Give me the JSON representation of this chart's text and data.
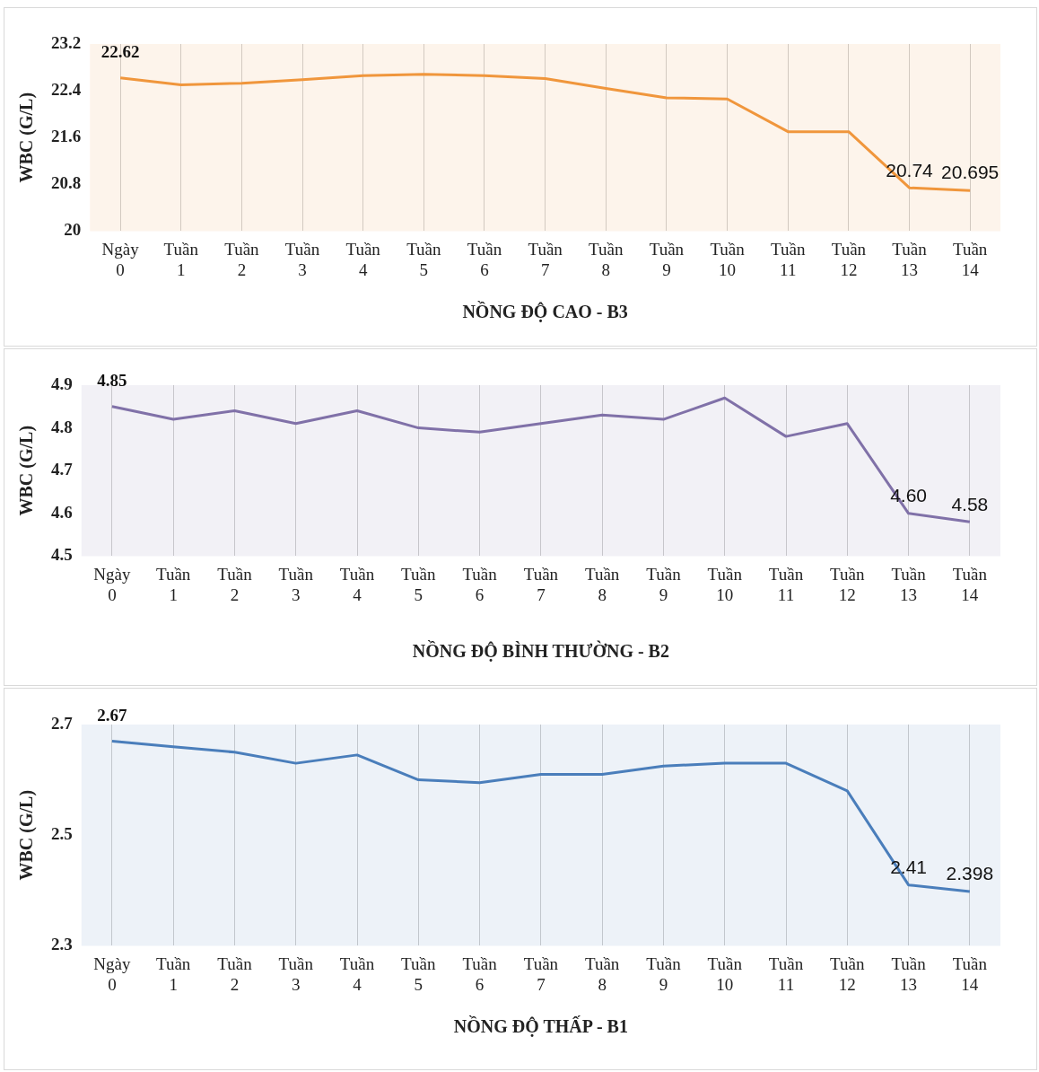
{
  "chart_data": [
    {
      "type": "line",
      "xlabel": "NỒNG ĐỘ CAO - B3",
      "ylabel": "WBC (G/L)",
      "categories": [
        "Ngày\n0",
        "Tuần\n1",
        "Tuần\n2",
        "Tuần\n3",
        "Tuần\n4",
        "Tuần\n5",
        "Tuần\n6",
        "Tuần\n7",
        "Tuần\n8",
        "Tuần\n9",
        "Tuần\n10",
        "Tuần\n11",
        "Tuần\n12",
        "Tuần\n13",
        "Tuần\n14"
      ],
      "series": [
        {
          "color": "#f0963c",
          "values": [
            22.62,
            22.5,
            22.53,
            22.59,
            22.66,
            22.68,
            22.66,
            22.61,
            22.44,
            22.28,
            22.26,
            21.7,
            21.7,
            20.74,
            20.695
          ],
          "value_labels": [
            "22.62",
            null,
            null,
            null,
            null,
            null,
            null,
            null,
            null,
            null,
            null,
            null,
            null,
            "20.74",
            "20.695"
          ]
        }
      ],
      "ylim": [
        20,
        23.2
      ],
      "yticks": [
        20,
        20.8,
        21.6,
        22.4,
        23.2
      ],
      "grid": "x",
      "legend": false,
      "marker": "none",
      "line_style": "solid"
    },
    {
      "type": "line",
      "xlabel": "NỒNG ĐỘ BÌNH THƯỜNG - B2",
      "ylabel": "WBC (G/L)",
      "categories": [
        "Ngày\n0",
        "Tuần\n1",
        "Tuần\n2",
        "Tuần\n3",
        "Tuần\n4",
        "Tuần\n5",
        "Tuần\n6",
        "Tuần\n7",
        "Tuần\n8",
        "Tuần\n9",
        "Tuần\n10",
        "Tuần\n11",
        "Tuần\n12",
        "Tuần\n13",
        "Tuần\n14"
      ],
      "series": [
        {
          "color": "#8071a8",
          "values": [
            4.85,
            4.82,
            4.84,
            4.81,
            4.84,
            4.8,
            4.79,
            4.81,
            4.83,
            4.82,
            4.87,
            4.78,
            4.81,
            4.6,
            4.58
          ],
          "value_labels": [
            "4.85",
            null,
            null,
            null,
            null,
            null,
            null,
            null,
            null,
            null,
            null,
            null,
            null,
            "4.60",
            "4.58"
          ]
        }
      ],
      "ylim": [
        4.5,
        4.9
      ],
      "yticks": [
        4.5,
        4.6,
        4.7,
        4.8,
        4.9
      ],
      "grid": "x",
      "legend": false,
      "marker": "none",
      "line_style": "solid"
    },
    {
      "type": "line",
      "xlabel": "NỒNG ĐỘ THẤP - B1",
      "ylabel": "WBC (G/L)",
      "categories": [
        "Ngày\n0",
        "Tuần\n1",
        "Tuần\n2",
        "Tuần\n3",
        "Tuần\n4",
        "Tuần\n5",
        "Tuần\n6",
        "Tuần\n7",
        "Tuần\n8",
        "Tuần\n9",
        "Tuần\n10",
        "Tuần\n11",
        "Tuần\n12",
        "Tuần\n13",
        "Tuần\n14"
      ],
      "series": [
        {
          "color": "#4a7ebb",
          "values": [
            2.67,
            2.66,
            2.65,
            2.63,
            2.645,
            2.6,
            2.595,
            2.61,
            2.61,
            2.625,
            2.63,
            2.63,
            2.58,
            2.41,
            2.398
          ],
          "value_labels": [
            "2.67",
            null,
            null,
            null,
            null,
            null,
            null,
            null,
            null,
            null,
            null,
            null,
            null,
            "2.41",
            "2.398"
          ]
        }
      ],
      "ylim": [
        2.3,
        2.7
      ],
      "yticks": [
        2.3,
        2.5,
        2.7
      ],
      "grid": "x",
      "legend": false,
      "marker": "none",
      "line_style": "solid"
    }
  ]
}
